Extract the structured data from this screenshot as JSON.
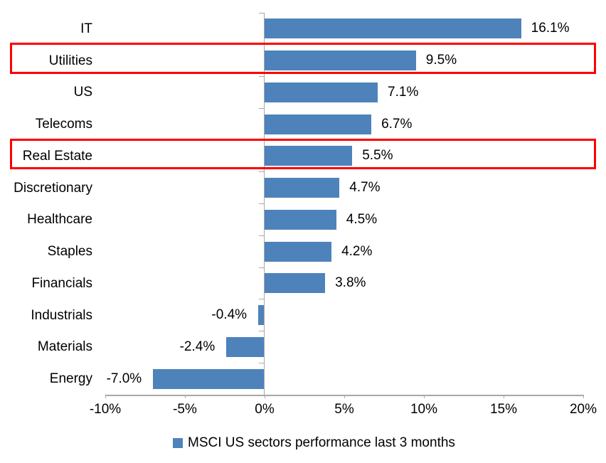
{
  "chart_data": {
    "type": "bar",
    "orientation": "horizontal",
    "title": "",
    "legend": "MSCI US sectors performance last 3 months",
    "legend_position": "bottom",
    "categories": [
      "IT",
      "Utilities",
      "US",
      "Telecoms",
      "Real Estate",
      "Discretionary",
      "Healthcare",
      "Staples",
      "Financials",
      "Industrials",
      "Materials",
      "Energy"
    ],
    "values": [
      16.1,
      9.5,
      7.1,
      6.7,
      5.5,
      4.7,
      4.5,
      4.2,
      3.8,
      -0.4,
      -2.4,
      -7.0
    ],
    "value_labels": [
      "16.1%",
      "9.5%",
      "7.1%",
      "6.7%",
      "5.5%",
      "4.7%",
      "4.5%",
      "4.2%",
      "3.8%",
      "-0.4%",
      "-2.4%",
      "-7.0%"
    ],
    "highlighted_categories": [
      "Utilities",
      "Real Estate"
    ],
    "xlim": [
      -10,
      20
    ],
    "x_ticks": [
      {
        "label": "-10%",
        "value": -10
      },
      {
        "label": "-5%",
        "value": -5
      },
      {
        "label": "0%",
        "value": 0
      },
      {
        "label": "5%",
        "value": 5
      },
      {
        "label": "10%",
        "value": 10
      },
      {
        "label": "15%",
        "value": 15
      },
      {
        "label": "20%",
        "value": 20
      }
    ],
    "grid": false,
    "colors": {
      "bar": "#4E82BB",
      "highlight_box": "#FF0000",
      "axis": "#A8A8A8",
      "text": "#000000",
      "background": "#FFFFFF"
    }
  }
}
